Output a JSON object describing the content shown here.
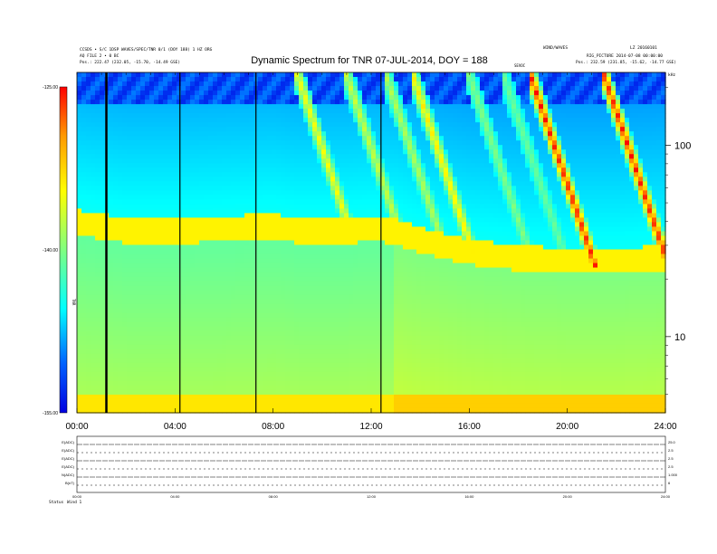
{
  "header": {
    "left_line1": "CCSDS • S/C 1DSP WAVES/SPEC/TNR 0/1 (DOY 188) 1 HZ ORG",
    "left_line2": "AQ FILE 2 • 0 BC",
    "left_line3": "Pos.: 222.47 (232.05, -15.70, -14.49 GSE)",
    "right_line1": "WIND/WAVES",
    "right_line2": "LZ 20160101",
    "right_line3": "RIG_PICTURE 2014-07-08 00:00:00",
    "right_line4": "Pos.: 232.59 (231.85, -15.62, -14.77 GSE)",
    "right_mark": "SEVOC",
    "right_edge_label": "kHz"
  },
  "chart_data": {
    "type": "heatmap",
    "title": "Dynamic Spectrum for TNR 07-JUL-2014, DOY = 188",
    "x_ticks": [
      "00:00",
      "04:00",
      "08:00",
      "12:00",
      "16:00",
      "20:00",
      "24:00"
    ],
    "x_range_hours": [
      0,
      24
    ],
    "y_scale": "log",
    "y_range_khz": [
      4,
      240
    ],
    "y_ticks": [
      "100",
      "10"
    ],
    "colorbar": {
      "ticks": [
        "-125.00",
        "-140.00",
        "-155.00"
      ],
      "range_db": [
        -155,
        -125
      ],
      "label": "TNR",
      "colors": [
        "#0000ff",
        "#00bfff",
        "#00ffff",
        "#80ff80",
        "#ffff00",
        "#ff9900",
        "#ff0000"
      ]
    },
    "data_gaps_hours": [
      1.2,
      4.2,
      7.3,
      12.4
    ],
    "plasma_line_khz": {
      "hours": [
        0,
        1,
        2,
        4,
        6,
        8,
        9,
        10,
        11,
        12,
        13,
        14,
        15,
        16,
        18,
        20,
        22,
        24
      ],
      "values": [
        40,
        38,
        36,
        36,
        37,
        38,
        36,
        36,
        36,
        37,
        36,
        32,
        30,
        28,
        26,
        25,
        25,
        26
      ]
    },
    "type_iii_bursts": [
      {
        "start_h": 9.0,
        "strength": 0.55
      },
      {
        "start_h": 11.0,
        "strength": 0.45
      },
      {
        "start_h": 12.6,
        "strength": 0.4
      },
      {
        "start_h": 13.7,
        "strength": 0.6
      },
      {
        "start_h": 16.0,
        "strength": 0.3
      },
      {
        "start_h": 17.4,
        "strength": 0.25
      },
      {
        "start_h": 18.5,
        "strength": 1.0
      },
      {
        "start_h": 21.5,
        "strength": 1.0
      }
    ]
  },
  "lower_panel": {
    "rows": [
      "E(ADC)",
      "E(ADC)",
      "E(ADC)",
      "E(ADC)",
      "N(ADC)",
      "B(nT)"
    ],
    "right_values": [
      "25.0",
      "2.5",
      "2.5",
      "2.5",
      "1.000",
      "6"
    ],
    "x_ticks": [
      "00:00",
      "04:00",
      "08:00",
      "12:00",
      "16:00",
      "20:00",
      "24:00"
    ],
    "footer_left": "Status",
    "footer_left2": "Wind 1"
  }
}
